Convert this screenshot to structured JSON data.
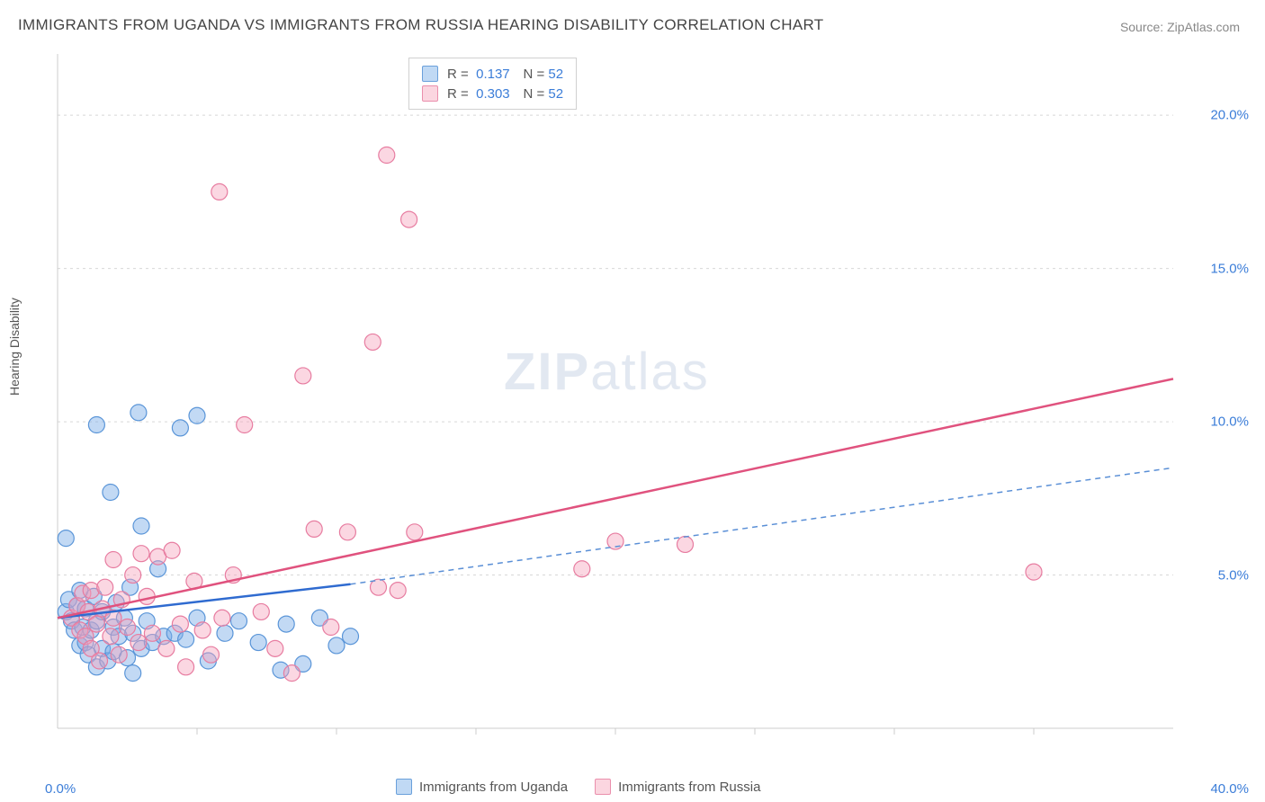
{
  "title": "IMMIGRANTS FROM UGANDA VS IMMIGRANTS FROM RUSSIA HEARING DISABILITY CORRELATION CHART",
  "source": "Source: ZipAtlas.com",
  "y_axis_label": "Hearing Disability",
  "watermark_zip": "ZIP",
  "watermark_atlas": "atlas",
  "chart": {
    "type": "scatter",
    "xlim": [
      0,
      40
    ],
    "ylim": [
      0,
      22
    ],
    "y_ticks": [
      5.0,
      10.0,
      15.0,
      20.0
    ],
    "y_tick_labels": [
      "5.0%",
      "10.0%",
      "15.0%",
      "20.0%"
    ],
    "x_tick_labels": [
      "0.0%",
      "40.0%"
    ],
    "x_minor_ticks": [
      5,
      10,
      15,
      20,
      25,
      30,
      35
    ],
    "background_color": "#ffffff",
    "grid_color": "#d8d8d8",
    "axis_color": "#cccccc",
    "tick_label_color": "#3b7dd8",
    "tick_label_fontsize": 15
  },
  "series": [
    {
      "name": "Immigrants from Uganda",
      "marker_fill": "rgba(120, 170, 230, 0.45)",
      "marker_stroke": "#5a95d8",
      "marker_radius": 9,
      "swatch_fill": "rgba(140, 185, 235, 0.55)",
      "swatch_border": "#6aa0db",
      "correlation_R": "0.137",
      "correlation_N": "52",
      "trend": {
        "x1": 0,
        "y1": 3.6,
        "x2": 10.5,
        "y2": 4.7,
        "color": "#2f6bd0",
        "width": 2.5,
        "dash": "none"
      },
      "trend_ext": {
        "x1": 10.5,
        "y1": 4.7,
        "x2": 40,
        "y2": 8.5,
        "color": "#5a8fd6",
        "width": 1.5,
        "dash": "6,5"
      },
      "points": [
        [
          0.3,
          3.8
        ],
        [
          0.4,
          4.2
        ],
        [
          0.5,
          3.5
        ],
        [
          0.6,
          3.2
        ],
        [
          0.7,
          4.0
        ],
        [
          0.8,
          2.7
        ],
        [
          0.8,
          4.5
        ],
        [
          0.3,
          6.2
        ],
        [
          0.9,
          3.3
        ],
        [
          1.0,
          2.8
        ],
        [
          1.0,
          3.9
        ],
        [
          1.1,
          2.4
        ],
        [
          1.2,
          3.2
        ],
        [
          1.3,
          4.3
        ],
        [
          1.4,
          2.0
        ],
        [
          1.4,
          3.5
        ],
        [
          1.4,
          9.9
        ],
        [
          1.6,
          2.6
        ],
        [
          1.6,
          3.8
        ],
        [
          1.8,
          2.2
        ],
        [
          2.9,
          10.3
        ],
        [
          2.0,
          3.3
        ],
        [
          2.0,
          2.5
        ],
        [
          2.1,
          4.1
        ],
        [
          2.2,
          3.0
        ],
        [
          1.9,
          7.7
        ],
        [
          2.4,
          3.6
        ],
        [
          2.5,
          2.3
        ],
        [
          2.6,
          4.6
        ],
        [
          2.7,
          3.1
        ],
        [
          2.7,
          1.8
        ],
        [
          3.0,
          2.6
        ],
        [
          3.0,
          6.6
        ],
        [
          3.2,
          3.5
        ],
        [
          3.4,
          2.8
        ],
        [
          3.6,
          5.2
        ],
        [
          3.8,
          3.0
        ],
        [
          4.2,
          3.1
        ],
        [
          4.4,
          9.8
        ],
        [
          4.6,
          2.9
        ],
        [
          5.0,
          3.6
        ],
        [
          5.0,
          10.2
        ],
        [
          5.4,
          2.2
        ],
        [
          6.0,
          3.1
        ],
        [
          6.5,
          3.5
        ],
        [
          7.2,
          2.8
        ],
        [
          8.0,
          1.9
        ],
        [
          8.2,
          3.4
        ],
        [
          8.8,
          2.1
        ],
        [
          9.4,
          3.6
        ],
        [
          10.0,
          2.7
        ],
        [
          10.5,
          3.0
        ]
      ]
    },
    {
      "name": "Immigrants from Russia",
      "marker_fill": "rgba(245, 160, 185, 0.42)",
      "marker_stroke": "#e77ca0",
      "marker_radius": 9,
      "swatch_fill": "rgba(248, 180, 198, 0.55)",
      "swatch_border": "#ea8fac",
      "correlation_R": "0.303",
      "correlation_N": "52",
      "trend": {
        "x1": 0,
        "y1": 3.6,
        "x2": 40,
        "y2": 11.4,
        "color": "#e0527e",
        "width": 2.5,
        "dash": "none"
      },
      "points": [
        [
          0.5,
          3.6
        ],
        [
          0.7,
          4.0
        ],
        [
          0.8,
          3.2
        ],
        [
          0.9,
          4.4
        ],
        [
          1.0,
          3.0
        ],
        [
          1.1,
          3.8
        ],
        [
          1.2,
          2.6
        ],
        [
          1.2,
          4.5
        ],
        [
          1.4,
          3.4
        ],
        [
          1.5,
          2.2
        ],
        [
          1.6,
          3.9
        ],
        [
          1.7,
          4.6
        ],
        [
          1.9,
          3.0
        ],
        [
          2.0,
          5.5
        ],
        [
          2.0,
          3.6
        ],
        [
          2.2,
          2.4
        ],
        [
          2.3,
          4.2
        ],
        [
          2.5,
          3.3
        ],
        [
          2.7,
          5.0
        ],
        [
          2.9,
          2.8
        ],
        [
          3.0,
          5.7
        ],
        [
          3.2,
          4.3
        ],
        [
          3.4,
          3.1
        ],
        [
          3.6,
          5.6
        ],
        [
          3.9,
          2.6
        ],
        [
          4.1,
          5.8
        ],
        [
          4.4,
          3.4
        ],
        [
          4.6,
          2.0
        ],
        [
          4.9,
          4.8
        ],
        [
          5.2,
          3.2
        ],
        [
          5.5,
          2.4
        ],
        [
          5.8,
          17.5
        ],
        [
          5.9,
          3.6
        ],
        [
          6.3,
          5.0
        ],
        [
          6.7,
          9.9
        ],
        [
          7.3,
          3.8
        ],
        [
          7.8,
          2.6
        ],
        [
          8.4,
          1.8
        ],
        [
          8.8,
          11.5
        ],
        [
          9.2,
          6.5
        ],
        [
          9.8,
          3.3
        ],
        [
          10.4,
          6.4
        ],
        [
          11.3,
          12.6
        ],
        [
          11.5,
          4.6
        ],
        [
          11.8,
          18.7
        ],
        [
          12.2,
          4.5
        ],
        [
          12.6,
          16.6
        ],
        [
          12.8,
          6.4
        ],
        [
          18.8,
          5.2
        ],
        [
          20.0,
          6.1
        ],
        [
          22.5,
          6.0
        ],
        [
          35.0,
          5.1
        ]
      ]
    }
  ],
  "top_legend": {
    "r_label": "R =",
    "n_label": "N ="
  },
  "bottom_legend": {
    "items": [
      "Immigrants from Uganda",
      "Immigrants from Russia"
    ]
  }
}
